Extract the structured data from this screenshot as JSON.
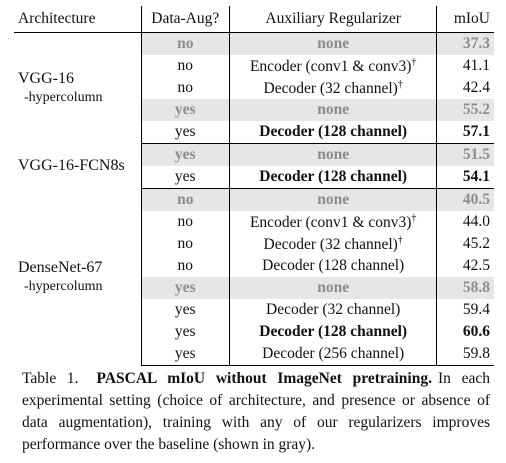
{
  "table": {
    "headers": {
      "architecture": "Architecture",
      "data_aug": "Data-Aug?",
      "regularizer": "Auxiliary Regularizer",
      "miou": "mIoU"
    },
    "groups": [
      {
        "name": "VGG-16",
        "sub": "-hypercolumn",
        "rows": [
          {
            "aug": "no",
            "reg": "none",
            "miou": "37.3"
          },
          {
            "aug": "no",
            "reg": "Encoder (conv1 & conv3)",
            "dagger": "†",
            "miou": "41.1"
          },
          {
            "aug": "no",
            "reg": "Decoder (32 channel)",
            "dagger": "†",
            "miou": "42.4"
          },
          {
            "aug": "yes",
            "reg": "none",
            "miou": "55.2"
          },
          {
            "aug": "yes",
            "reg": "Decoder (128 channel)",
            "miou": "57.1"
          }
        ]
      },
      {
        "name": "VGG-16-FCN8s",
        "rows": [
          {
            "aug": "yes",
            "reg": "none",
            "miou": "51.5"
          },
          {
            "aug": "yes",
            "reg": "Decoder (128 channel)",
            "miou": "54.1"
          }
        ]
      },
      {
        "name": "DenseNet-67",
        "sub": "-hypercolumn",
        "rows": [
          {
            "aug": "no",
            "reg": "none",
            "miou": "40.5"
          },
          {
            "aug": "no",
            "reg": "Encoder (conv1 & conv3)",
            "dagger": "†",
            "miou": "44.0"
          },
          {
            "aug": "no",
            "reg": "Decoder (32 channel)",
            "dagger": "†",
            "miou": "45.2"
          },
          {
            "aug": "no",
            "reg": "Decoder (128 channel)",
            "miou": "42.5"
          },
          {
            "aug": "yes",
            "reg": "none",
            "miou": "58.8"
          },
          {
            "aug": "yes",
            "reg": "Decoder (32 channel)",
            "miou": "59.4"
          },
          {
            "aug": "yes",
            "reg": "Decoder (128 channel)",
            "miou": "60.6"
          },
          {
            "aug": "yes",
            "reg": "Decoder (256 channel)",
            "miou": "59.8"
          }
        ]
      }
    ]
  },
  "caption": {
    "label": "Table 1.",
    "title": "PASCAL mIoU without ImageNet pretraining.",
    "text": "In each experimental setting (choice of architecture, and presence or absence of data augmentation), training with any of our regularizers improves performance over the baseline (shown in gray)."
  },
  "colors": {
    "baseline_background": "#e6e6e6",
    "baseline_text": "#8c8c8c"
  }
}
